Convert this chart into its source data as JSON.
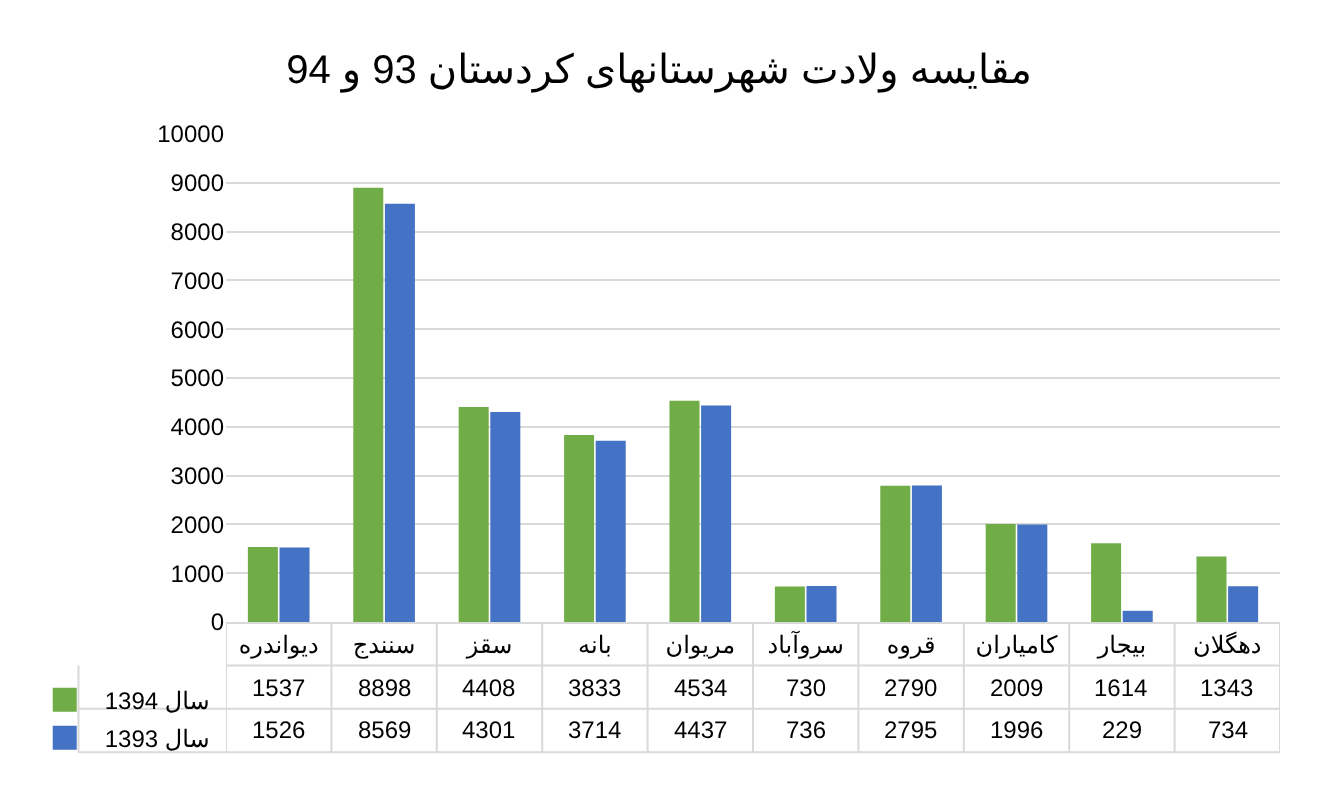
{
  "chart_data": {
    "type": "bar",
    "title": "مقایسه ولادت شهرستانهای کردستان 93 و 94",
    "categories": [
      "دیواندره",
      "سنندج",
      "سقز",
      "بانه",
      "مریوان",
      "سروآباد",
      "قروه",
      "کامیاران",
      "بیجار",
      "دهگلان"
    ],
    "series": [
      {
        "name": "سال 1394",
        "color": "#70ad47",
        "values": [
          1537,
          8898,
          4408,
          3833,
          4534,
          730,
          2790,
          2009,
          1614,
          1343
        ]
      },
      {
        "name": "سال 1393",
        "color": "#4472c4",
        "values": [
          1526,
          8569,
          4301,
          3714,
          4437,
          736,
          2795,
          1996,
          229,
          734
        ]
      }
    ],
    "ylim": [
      0,
      10000
    ],
    "yticks": [
      0,
      1000,
      2000,
      3000,
      4000,
      5000,
      6000,
      7000,
      8000,
      9000,
      10000
    ],
    "grid": "y",
    "legend": "bottom left",
    "data_labels": true
  }
}
